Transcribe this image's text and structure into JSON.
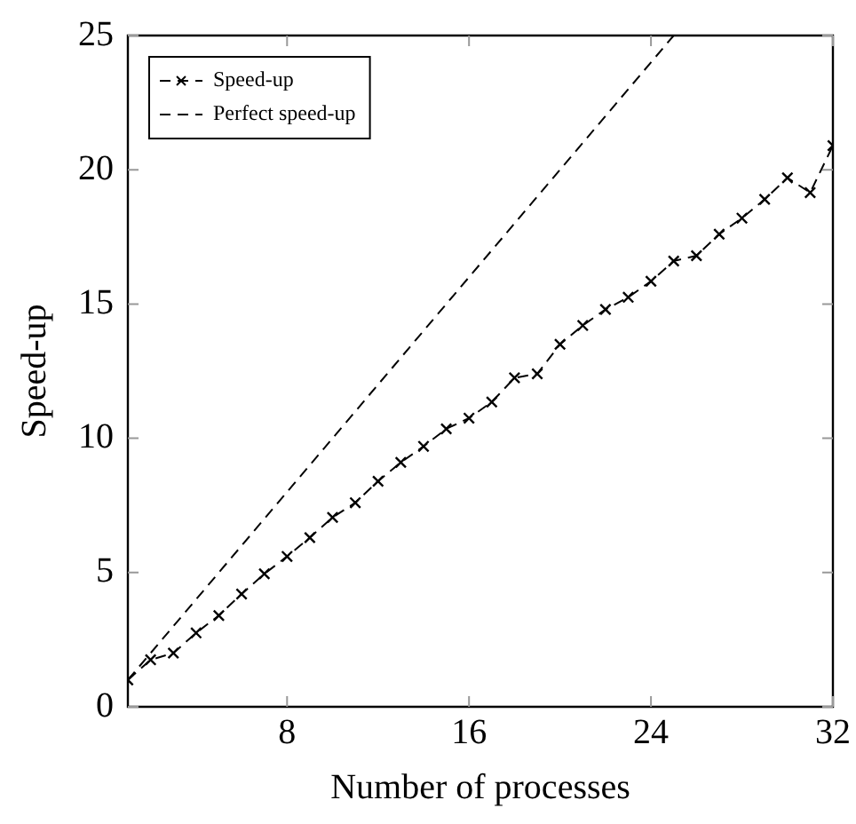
{
  "chart_data": {
    "type": "line",
    "xlabel": "Number of processes",
    "ylabel": "Speed-up",
    "xlim": [
      1,
      32
    ],
    "xticks": [
      8,
      16,
      24,
      32
    ],
    "ylim": [
      0,
      25
    ],
    "yticks": [
      0,
      5,
      10,
      15,
      20,
      25
    ],
    "grid": false,
    "legend": "top left",
    "series": [
      {
        "name": "Speed-up",
        "color": "#000000",
        "marker": "cross",
        "line_style": "dashed",
        "x": [
          1,
          2,
          3,
          4,
          5,
          6,
          7,
          8,
          9,
          10,
          11,
          12,
          13,
          14,
          15,
          16,
          17,
          18,
          19,
          20,
          21,
          22,
          23,
          24,
          25,
          26,
          27,
          28,
          29,
          30,
          31,
          32
        ],
        "values": [
          1.0,
          1.75,
          2.0,
          2.75,
          3.4,
          4.2,
          4.95,
          5.6,
          6.3,
          7.05,
          7.6,
          8.4,
          9.1,
          9.7,
          10.35,
          10.75,
          11.35,
          12.25,
          12.4,
          13.5,
          14.2,
          14.8,
          15.25,
          15.85,
          16.6,
          16.8,
          17.6,
          18.2,
          18.9,
          19.7,
          19.15,
          20.9
        ]
      },
      {
        "name": "Perfect speed-up",
        "color": "#000000",
        "marker": "none",
        "line_style": "dashed",
        "x": [
          1,
          25
        ],
        "values": [
          1,
          25
        ]
      }
    ]
  }
}
